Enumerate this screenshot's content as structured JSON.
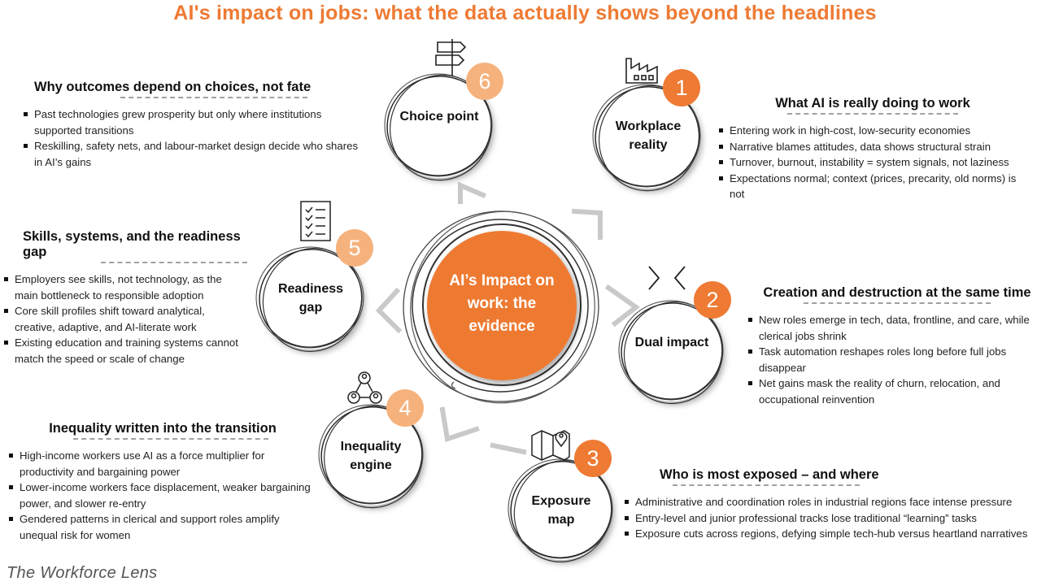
{
  "title": "AI's impact on jobs: what the data actually shows beyond the headlines",
  "footer": "The Workforce Lens",
  "colors": {
    "accent": "#EE7A33",
    "accent_light": "#F5B27D"
  },
  "center": {
    "label": "AI’s Impact on work: the evidence"
  },
  "nodes": [
    {
      "number": "1",
      "label": "Workplace reality",
      "icon": "factory-icon",
      "heading": "What AI is really doing to work",
      "bullets": [
        "Entering work in high-cost, low-security economies",
        "Narrative blames attitudes, data shows structural strain",
        "Turnover, burnout, instability = system signals, not laziness",
        "Expectations normal; context (prices, precarity, old norms) is not"
      ]
    },
    {
      "number": "2",
      "label": "Dual impact",
      "icon": "arrows-icon",
      "heading": "Creation and destruction at the same time",
      "bullets": [
        "New roles emerge in tech, data, frontline, and care, while clerical jobs shrink",
        "Task automation reshapes roles long before full jobs disappear",
        "Net gains mask the reality of churn, relocation, and occupational reinvention"
      ]
    },
    {
      "number": "3",
      "label": "Exposure map",
      "icon": "map-icon",
      "heading": "Who is most exposed – and where",
      "bullets": [
        "Administrative and coordination roles in industrial regions face intense pressure",
        "Entry-level and junior professional tracks lose traditional “learning” tasks",
        "Exposure cuts across regions, defying simple tech-hub versus heartland narratives"
      ]
    },
    {
      "number": "4",
      "label": "Inequality engine",
      "icon": "network-icon",
      "heading": "Inequality written into the transition",
      "bullets": [
        "High-income workers use AI as a force multiplier for productivity and bargaining power",
        "Lower-income workers face displacement, weaker bargaining power, and slower re-entry",
        "Gendered patterns in clerical and support roles amplify unequal risk for women"
      ]
    },
    {
      "number": "5",
      "label": "Readiness gap",
      "icon": "checklist-icon",
      "heading": "Skills, systems, and the readiness gap",
      "bullets": [
        "Employers see skills, not technology, as the main bottleneck to responsible adoption",
        "Core skill profiles shift toward analytical, creative, adaptive, and AI-literate work",
        "Existing education and training systems cannot match the speed or scale of change"
      ]
    },
    {
      "number": "6",
      "label": "Choice point",
      "icon": "signpost-icon",
      "heading": "Why outcomes depend on choices, not fate",
      "bullets": [
        "Past technologies grew prosperity but only where institutions supported transitions",
        "Reskilling, safety nets, and labour-market design decide who shares in AI’s gains"
      ]
    }
  ]
}
